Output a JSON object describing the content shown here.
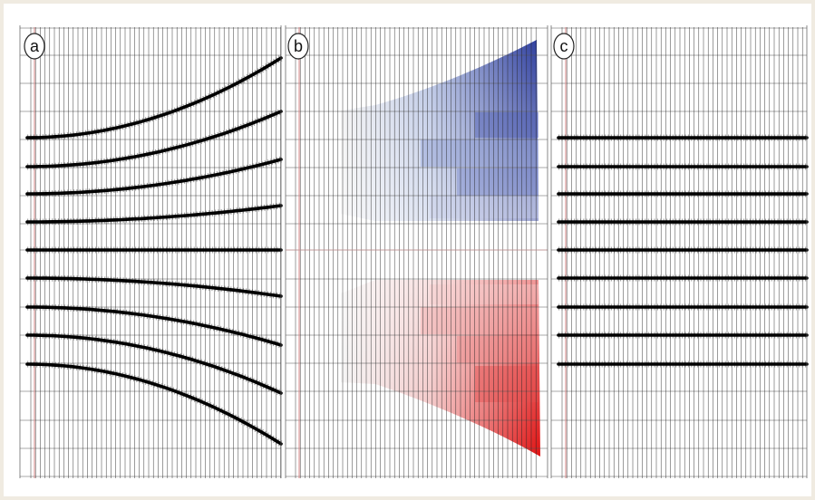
{
  "panels": [
    {
      "id": "a",
      "label": "a",
      "type": "moveout-gather",
      "events": [
        {
          "offset_at_far": -88
        },
        {
          "offset_at_far": -61
        },
        {
          "offset_at_far": -38
        },
        {
          "offset_at_far": -18
        },
        {
          "offset_at_far": 0
        },
        {
          "offset_at_far": 20
        },
        {
          "offset_at_far": 42
        },
        {
          "offset_at_far": 64
        },
        {
          "offset_at_far": 88
        }
      ]
    },
    {
      "id": "b",
      "label": "b",
      "type": "moveout-correction-map",
      "colors": {
        "upper": "#3a4aa8",
        "lower": "#e01818",
        "neutral": "#eeeeee"
      }
    },
    {
      "id": "c",
      "label": "c",
      "type": "flattened-gather",
      "events": [
        {
          "offset_at_far": 0
        },
        {
          "offset_at_far": 0
        },
        {
          "offset_at_far": 0
        },
        {
          "offset_at_far": 0
        },
        {
          "offset_at_far": 0
        },
        {
          "offset_at_far": 0
        },
        {
          "offset_at_far": 0
        },
        {
          "offset_at_far": 0
        },
        {
          "offset_at_far": 0
        }
      ]
    }
  ],
  "colors": {
    "grid": "#555555",
    "trace": "#222222",
    "event": "#000000",
    "near_trace_line": "#d88888",
    "background": "#ffffff",
    "page": "#f0ebe1"
  }
}
